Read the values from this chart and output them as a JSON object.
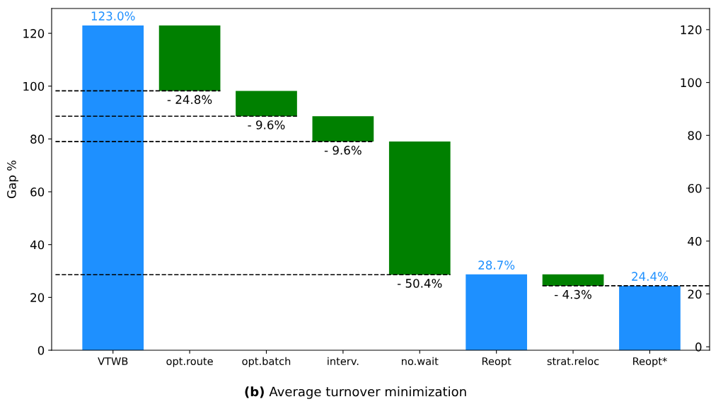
{
  "chart_data": {
    "type": "bar",
    "title": "(b) Average turnover minimization",
    "ylabel": "Gap %",
    "categories": [
      "VTWB",
      "opt.route",
      "opt.batch",
      "interv.",
      "no.wait",
      "Reopt",
      "strat.reloc",
      "Reopt*"
    ],
    "values": [
      123.0,
      -24.8,
      -9.6,
      -9.6,
      -50.4,
      28.7,
      -4.3,
      24.4
    ],
    "base": [
      0,
      123.0,
      98.2,
      88.6,
      79.0,
      0,
      28.7,
      0
    ],
    "colors": [
      "#1e90ff",
      "#008000",
      "#008000",
      "#008000",
      "#008000",
      "#1e90ff",
      "#008000",
      "#1e90ff"
    ],
    "value_labels": [
      "123.0%",
      "- 24.8%",
      "- 9.6%",
      "- 9.6%",
      "- 50.4%",
      "28.7%",
      "- 4.3%",
      "24.4%"
    ],
    "ylim": [
      0,
      129.4
    ],
    "yticks": [
      0,
      20,
      40,
      60,
      80,
      100,
      120
    ],
    "y2lim": [
      -1.3,
      128
    ],
    "y2ticks": [
      0,
      20,
      40,
      60,
      80,
      100,
      120
    ],
    "ref_lines": [
      {
        "axis": "y",
        "value": 98.2,
        "color": "#000000",
        "line_style": "dashed"
      },
      {
        "axis": "y",
        "value": 88.6,
        "color": "#000000",
        "line_style": "dashed"
      },
      {
        "axis": "y",
        "value": 79.0,
        "color": "#000000",
        "line_style": "dashed"
      },
      {
        "axis": "y",
        "value": 28.6,
        "color": "#000000",
        "line_style": "dashed"
      },
      {
        "axis": "y",
        "value": 24.4,
        "color": "#000000",
        "line_style": "dashed"
      }
    ],
    "grid": false
  }
}
